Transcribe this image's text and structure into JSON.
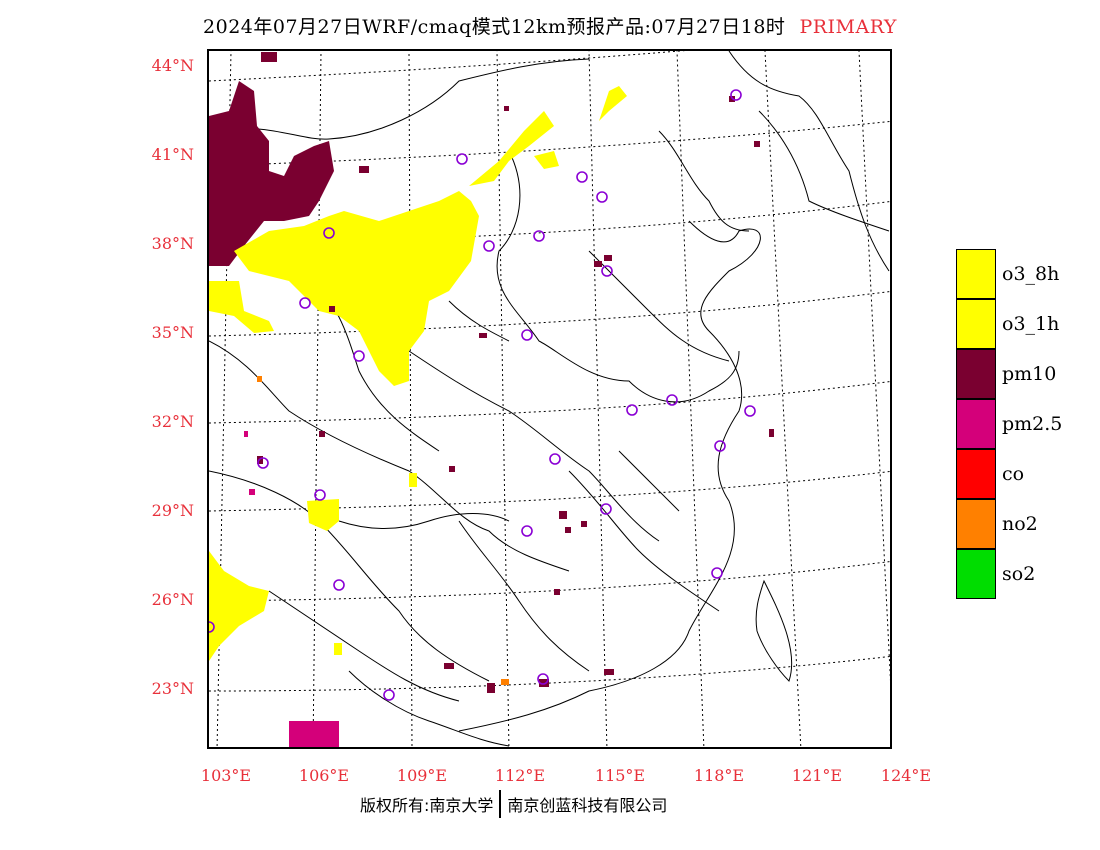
{
  "header": {
    "title": "2024年07月27日WRF/cmaq模式12km预报产品:07月27日18时",
    "badge": "PRIMARY"
  },
  "axes": {
    "lat_labels": [
      "44°N",
      "41°N",
      "38°N",
      "35°N",
      "32°N",
      "29°N",
      "26°N",
      "23°N"
    ],
    "lon_labels": [
      "103°E",
      "106°E",
      "109°E",
      "112°E",
      "115°E",
      "118°E",
      "121°E",
      "124°E"
    ]
  },
  "legend": {
    "items": [
      {
        "label": "o3_8h",
        "color": "#ffff00"
      },
      {
        "label": "o3_1h",
        "color": "#ffff00"
      },
      {
        "label": "pm10",
        "color": "#7a0030"
      },
      {
        "label": "pm2.5",
        "color": "#d4007a"
      },
      {
        "label": "co",
        "color": "#ff0000"
      },
      {
        "label": "no2",
        "color": "#ff8000"
      },
      {
        "label": "so2",
        "color": "#00dd00"
      }
    ]
  },
  "footer": {
    "left": "版权所有:南京大学",
    "right": "南京创蓝科技有限公司"
  },
  "colors": {
    "axis_label": "#e8303a",
    "station_marker": "#8a00d4"
  }
}
